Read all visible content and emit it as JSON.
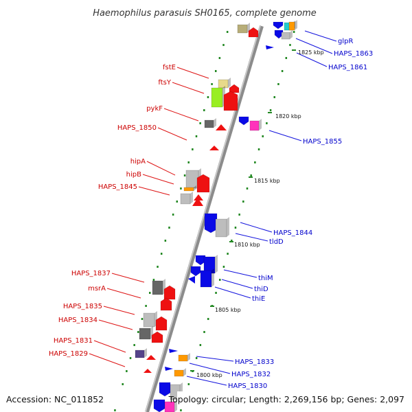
{
  "title": "Haemophilus parasuis SH0165, complete genome",
  "accession": "Accession: NC_011852",
  "summary": "Topology: circular; Length: 2,269,156 bp; Genes: 2,097",
  "colors": {
    "red": "#ee1111",
    "blue": "#0a0ae6",
    "gray": "#bdbdbd",
    "darkgray": "#666666",
    "olive": "#b7ad78",
    "tan": "#e8d98a",
    "lime": "#99ee22",
    "orange": "#ff9900",
    "cyan": "#22cccc",
    "magenta": "#ff33bb",
    "indigo": "#55448a",
    "tick": "#228822"
  },
  "kbp_ticks": [
    {
      "text": "1825 kbp"
    },
    {
      "text": "1820 kbp"
    },
    {
      "text": "1815 kbp"
    },
    {
      "text": "1810 kbp"
    },
    {
      "text": "1805 kbp"
    },
    {
      "text": "1800 kbp"
    }
  ],
  "left_labels": [
    {
      "text": "fstE"
    },
    {
      "text": "ftsY"
    },
    {
      "text": "pykF"
    },
    {
      "text": "HAPS_1850"
    },
    {
      "text": "hipA"
    },
    {
      "text": "hipB"
    },
    {
      "text": "HAPS_1845"
    },
    {
      "text": "HAPS_1837"
    },
    {
      "text": "msrA"
    },
    {
      "text": "HAPS_1835"
    },
    {
      "text": "HAPS_1834"
    },
    {
      "text": "HAPS_1831"
    },
    {
      "text": "HAPS_1829"
    }
  ],
  "right_labels": [
    {
      "text": "glpR"
    },
    {
      "text": "HAPS_1863"
    },
    {
      "text": "HAPS_1861"
    },
    {
      "text": "HAPS_1855"
    },
    {
      "text": "HAPS_1844"
    },
    {
      "text": "tldD"
    },
    {
      "text": "thiM"
    },
    {
      "text": "thiD"
    },
    {
      "text": "thiE"
    },
    {
      "text": "HAPS_1833"
    },
    {
      "text": "HAPS_1832"
    },
    {
      "text": "HAPS_1830"
    }
  ]
}
